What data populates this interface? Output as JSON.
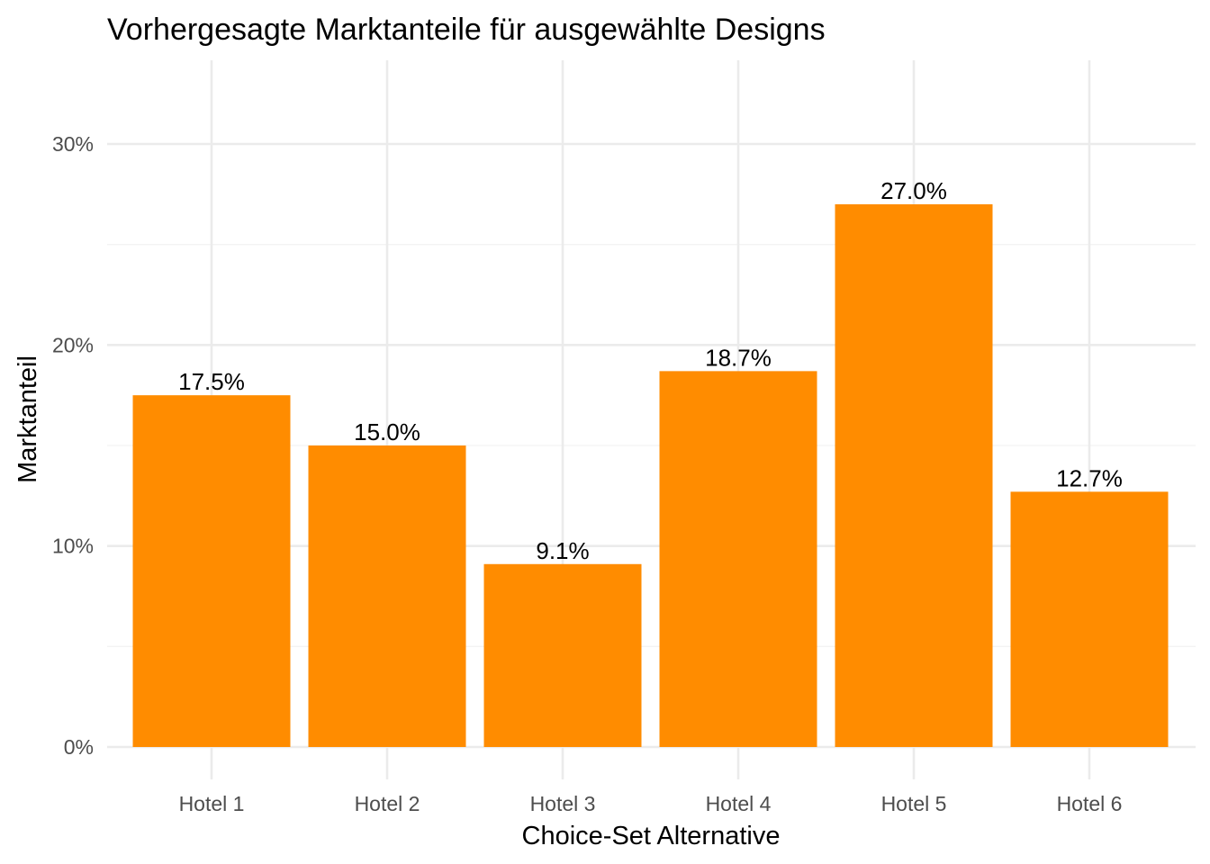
{
  "chart_data": {
    "type": "bar",
    "title": "Vorhergesagte Marktanteile für ausgewählte Designs",
    "xlabel": "Choice-Set Alternative",
    "ylabel": "Marktanteil",
    "categories": [
      "Hotel 1",
      "Hotel 2",
      "Hotel 3",
      "Hotel 4",
      "Hotel 5",
      "Hotel 6"
    ],
    "values": [
      17.5,
      15.0,
      9.1,
      18.7,
      27.0,
      12.7
    ],
    "value_labels": [
      "17.5%",
      "15.0%",
      "9.1%",
      "18.7%",
      "27.0%",
      "12.7%"
    ],
    "ylim": [
      0,
      34.2
    ],
    "yticks": [
      0,
      10,
      20,
      30
    ],
    "ytick_labels": [
      "0%",
      "10%",
      "20%",
      "30%"
    ],
    "bar_color": "#FF8C00",
    "grid": true,
    "legend": "none"
  }
}
